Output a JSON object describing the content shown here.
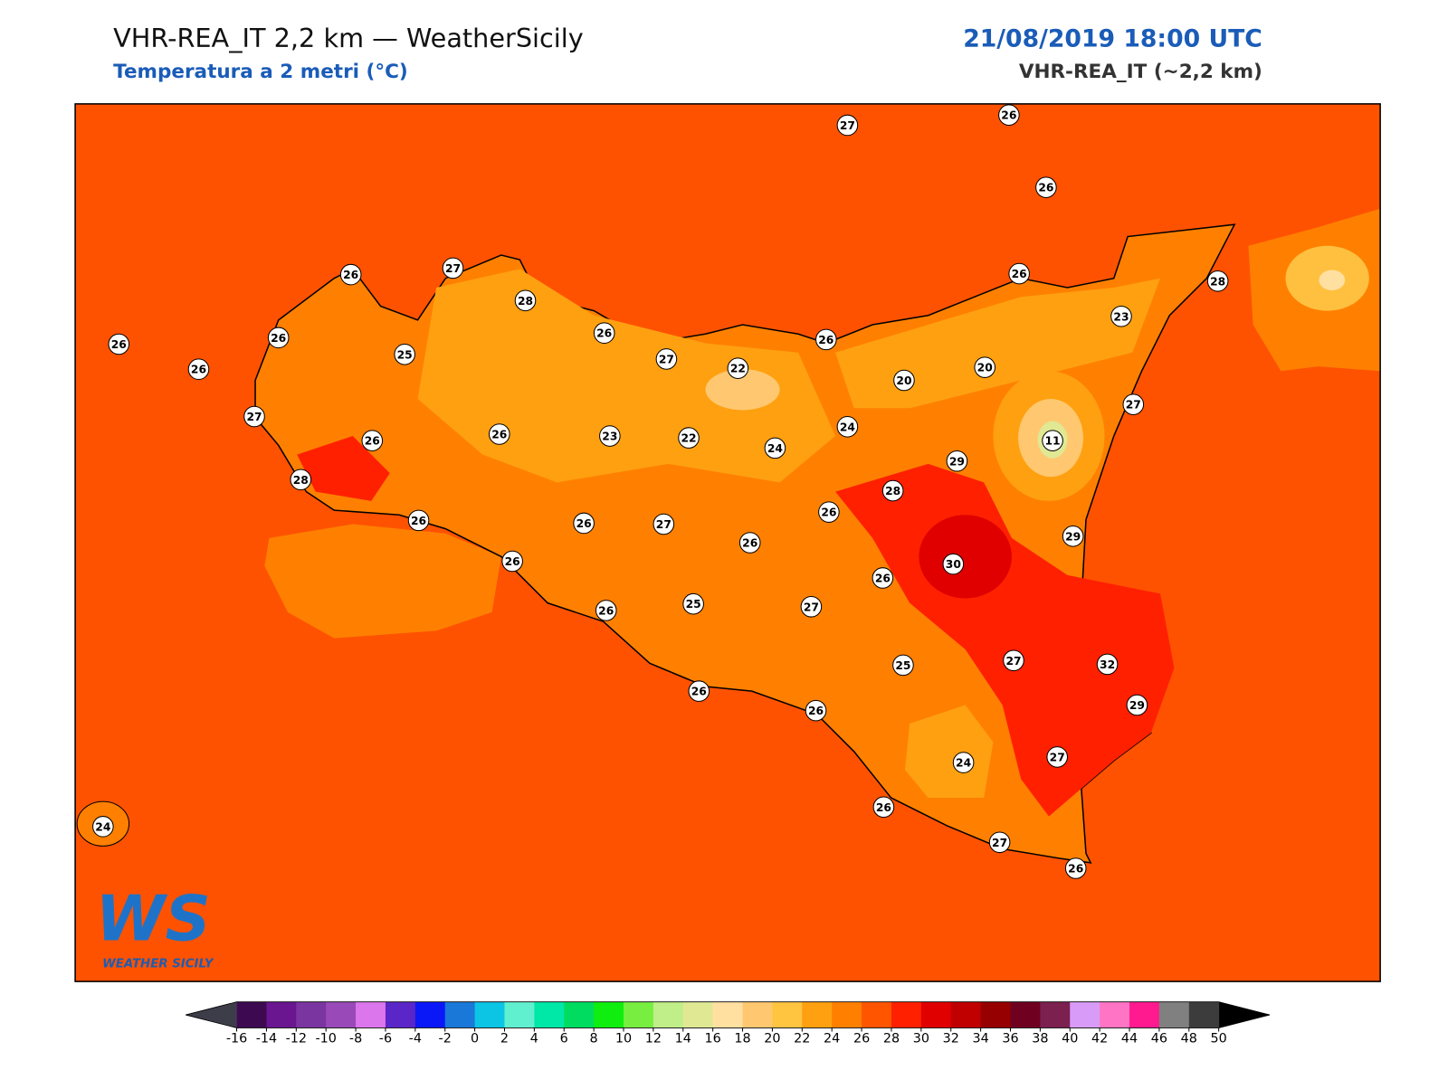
{
  "header": {
    "title": "VHR-REA_IT 2,2 km — WeatherSicily",
    "subtitle": "Temperatura a 2 metri (°C)",
    "datetime": "21/08/2019 18:00 UTC",
    "model": "VHR-REA_IT (~2,2 km)"
  },
  "logo": {
    "mark": "WS",
    "text": "WEATHER SICILY"
  },
  "stations": [
    27,
    26,
    26,
    26,
    27,
    28,
    26,
    26,
    26,
    25,
    26,
    27,
    22,
    26,
    26,
    28,
    23,
    20,
    20,
    27,
    27,
    26,
    26,
    23,
    22,
    24,
    24,
    11,
    29,
    28,
    28,
    26,
    26,
    27,
    26,
    26,
    29,
    30,
    26,
    26,
    26,
    25,
    27,
    25,
    27,
    32,
    29,
    26,
    26,
    24,
    27,
    26,
    27,
    26,
    24
  ],
  "colorbar": {
    "ticks": [
      -16,
      -14,
      -12,
      -10,
      -8,
      -6,
      -4,
      -2,
      0,
      2,
      4,
      6,
      8,
      10,
      12,
      14,
      16,
      18,
      20,
      22,
      24,
      26,
      28,
      30,
      32,
      34,
      36,
      38,
      40,
      42,
      44,
      46,
      48,
      50
    ],
    "colors": [
      "#3d0a52",
      "#6a1690",
      "#7b35a0",
      "#9a4ab8",
      "#dc76ec",
      "#5a26c8",
      "#0a18f8",
      "#1a78d8",
      "#0cc4e4",
      "#60f0d0",
      "#00e8a8",
      "#00dc60",
      "#10ee10",
      "#78ee40",
      "#c0ee88",
      "#e0e894",
      "#ffe0a0",
      "#ffc870",
      "#ffc440",
      "#ffa010",
      "#ff8000",
      "#ff5500",
      "#ff2000",
      "#e00000",
      "#c00000",
      "#960000",
      "#700020",
      "#7c2050",
      "#d89cf8",
      "#ff74c4",
      "#ff1a90",
      "#808080",
      "#3c3c3c"
    ],
    "under_color": "#3d3d4a",
    "over_color": "#000000"
  }
}
